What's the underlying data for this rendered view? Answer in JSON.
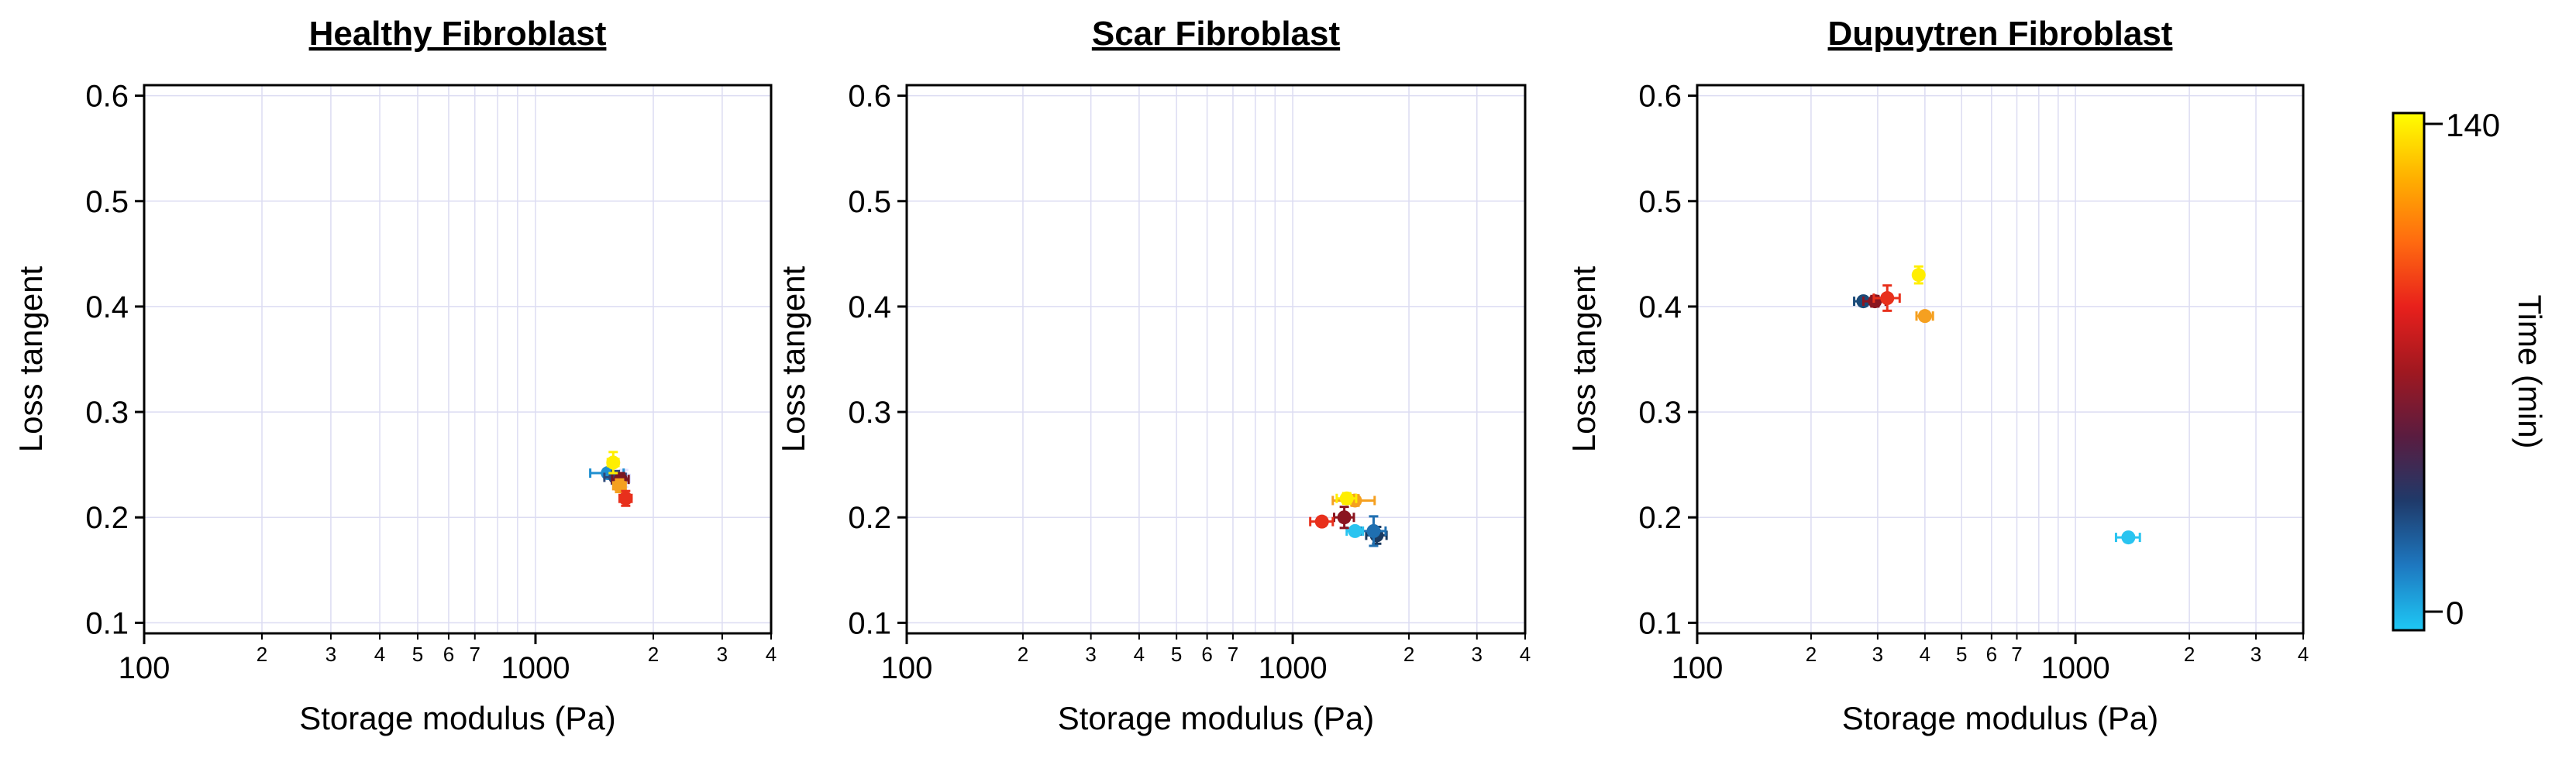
{
  "chart_data": [
    {
      "type": "scatter",
      "title": "Healthy Fibroblast",
      "xlabel": "Storage modulus (Pa)",
      "ylabel": "Loss tangent",
      "x_scale": "log",
      "xlim": [
        100,
        4000
      ],
      "ylim": [
        0.09,
        0.61
      ],
      "x_major_ticks": [
        {
          "value": 100,
          "label": "100"
        },
        {
          "value": 1000,
          "label": "1000"
        }
      ],
      "x_minor_ticks": [
        {
          "value": 200,
          "label": "2"
        },
        {
          "value": 300,
          "label": "3"
        },
        {
          "value": 400,
          "label": "4"
        },
        {
          "value": 500,
          "label": "5"
        },
        {
          "value": 600,
          "label": "6"
        },
        {
          "value": 700,
          "label": "7"
        },
        {
          "value": 2000,
          "label": "2"
        },
        {
          "value": 3000,
          "label": "3"
        },
        {
          "value": 4000,
          "label": "4"
        }
      ],
      "y_ticks": [
        {
          "value": 0.1,
          "label": "0.1"
        },
        {
          "value": 0.2,
          "label": "0.2"
        },
        {
          "value": 0.3,
          "label": "0.3"
        },
        {
          "value": 0.4,
          "label": "0.4"
        },
        {
          "value": 0.5,
          "label": "0.5"
        },
        {
          "value": 0.6,
          "label": "0.6"
        }
      ],
      "grid": true,
      "points": [
        {
          "x": 1680,
          "y": 0.237,
          "xerr": 60,
          "yerr": 0.008,
          "color": "#e0e0ff"
        },
        {
          "x": 1530,
          "y": 0.242,
          "xerr": 150,
          "yerr": 0.004,
          "color": "#1f8fd0"
        },
        {
          "x": 1600,
          "y": 0.238,
          "xerr": 100,
          "yerr": 0.006,
          "color": "#2d4a7a"
        },
        {
          "x": 1650,
          "y": 0.236,
          "xerr": 80,
          "yerr": 0.006,
          "color": "#7a1520"
        },
        {
          "x": 1640,
          "y": 0.23,
          "xerr": 60,
          "yerr": 0.006,
          "color": "#f5a020"
        },
        {
          "x": 1700,
          "y": 0.218,
          "xerr": 60,
          "yerr": 0.007,
          "color": "#e8301c"
        },
        {
          "x": 1580,
          "y": 0.252,
          "xerr": 50,
          "yerr": 0.01,
          "color": "#ffee00"
        }
      ]
    },
    {
      "type": "scatter",
      "title": "Scar Fibroblast",
      "xlabel": "Storage modulus (Pa)",
      "ylabel": "Loss tangent",
      "x_scale": "log",
      "xlim": [
        100,
        4000
      ],
      "ylim": [
        0.09,
        0.61
      ],
      "x_major_ticks": [
        {
          "value": 100,
          "label": "100"
        },
        {
          "value": 1000,
          "label": "1000"
        }
      ],
      "x_minor_ticks": [
        {
          "value": 200,
          "label": "2"
        },
        {
          "value": 300,
          "label": "3"
        },
        {
          "value": 400,
          "label": "4"
        },
        {
          "value": 500,
          "label": "5"
        },
        {
          "value": 600,
          "label": "6"
        },
        {
          "value": 700,
          "label": "7"
        },
        {
          "value": 2000,
          "label": "2"
        },
        {
          "value": 3000,
          "label": "3"
        },
        {
          "value": 4000,
          "label": "4"
        }
      ],
      "y_ticks": [
        {
          "value": 0.1,
          "label": "0.1"
        },
        {
          "value": 0.2,
          "label": "0.2"
        },
        {
          "value": 0.3,
          "label": "0.3"
        },
        {
          "value": 0.4,
          "label": "0.4"
        },
        {
          "value": 0.5,
          "label": "0.5"
        },
        {
          "value": 0.6,
          "label": "0.6"
        }
      ],
      "grid": true,
      "points": [
        {
          "x": 1650,
          "y": 0.183,
          "xerr": 100,
          "yerr": 0.008,
          "color": "#1a3a60"
        },
        {
          "x": 1620,
          "y": 0.187,
          "xerr": 120,
          "yerr": 0.014,
          "color": "#1f6fb0"
        },
        {
          "x": 1450,
          "y": 0.187,
          "xerr": 70,
          "yerr": 0.004,
          "color": "#29c4f0"
        },
        {
          "x": 1360,
          "y": 0.2,
          "xerr": 80,
          "yerr": 0.01,
          "color": "#8a1520"
        },
        {
          "x": 1190,
          "y": 0.196,
          "xerr": 80,
          "yerr": 0.004,
          "color": "#e8301c"
        },
        {
          "x": 1450,
          "y": 0.216,
          "xerr": 180,
          "yerr": 0.005,
          "color": "#f5a020"
        },
        {
          "x": 1380,
          "y": 0.218,
          "xerr": 80,
          "yerr": 0.005,
          "color": "#ffee00"
        }
      ]
    },
    {
      "type": "scatter",
      "title": "Dupuytren Fibroblast",
      "xlabel": "Storage modulus (Pa)",
      "ylabel": "Loss tangent",
      "x_scale": "log",
      "xlim": [
        100,
        4000
      ],
      "ylim": [
        0.09,
        0.61
      ],
      "x_major_ticks": [
        {
          "value": 100,
          "label": "100"
        },
        {
          "value": 1000,
          "label": "1000"
        }
      ],
      "x_minor_ticks": [
        {
          "value": 200,
          "label": "2"
        },
        {
          "value": 300,
          "label": "3"
        },
        {
          "value": 400,
          "label": "4"
        },
        {
          "value": 500,
          "label": "5"
        },
        {
          "value": 600,
          "label": "6"
        },
        {
          "value": 700,
          "label": "7"
        },
        {
          "value": 2000,
          "label": "2"
        },
        {
          "value": 3000,
          "label": "3"
        },
        {
          "value": 4000,
          "label": "4"
        }
      ],
      "y_ticks": [
        {
          "value": 0.1,
          "label": "0.1"
        },
        {
          "value": 0.2,
          "label": "0.2"
        },
        {
          "value": 0.3,
          "label": "0.3"
        },
        {
          "value": 0.4,
          "label": "0.4"
        },
        {
          "value": 0.5,
          "label": "0.5"
        },
        {
          "value": 0.6,
          "label": "0.6"
        }
      ],
      "grid": true,
      "points": [
        {
          "x": 1380,
          "y": 0.181,
          "xerr": 100,
          "yerr": 0.004,
          "color": "#29c4f0"
        },
        {
          "x": 275,
          "y": 0.405,
          "xerr": 15,
          "yerr": 0.004,
          "color": "#1a4a78"
        },
        {
          "x": 295,
          "y": 0.405,
          "xerr": 20,
          "yerr": 0.005,
          "color": "#8a1520"
        },
        {
          "x": 318,
          "y": 0.408,
          "xerr": 25,
          "yerr": 0.012,
          "color": "#e8301c"
        },
        {
          "x": 400,
          "y": 0.391,
          "xerr": 20,
          "yerr": 0.004,
          "color": "#f5a020"
        },
        {
          "x": 385,
          "y": 0.43,
          "xerr": 10,
          "yerr": 0.008,
          "color": "#ffee00"
        }
      ]
    }
  ],
  "colorbar": {
    "label": "Time (min)",
    "max_label": "140",
    "min_label": "0",
    "gradient_stops": [
      "#ffff00",
      "#ffb000",
      "#ff6a10",
      "#e8201c",
      "#a01820",
      "#5a1c40",
      "#1f3a6a",
      "#1e78c0",
      "#1ec8f5"
    ]
  }
}
